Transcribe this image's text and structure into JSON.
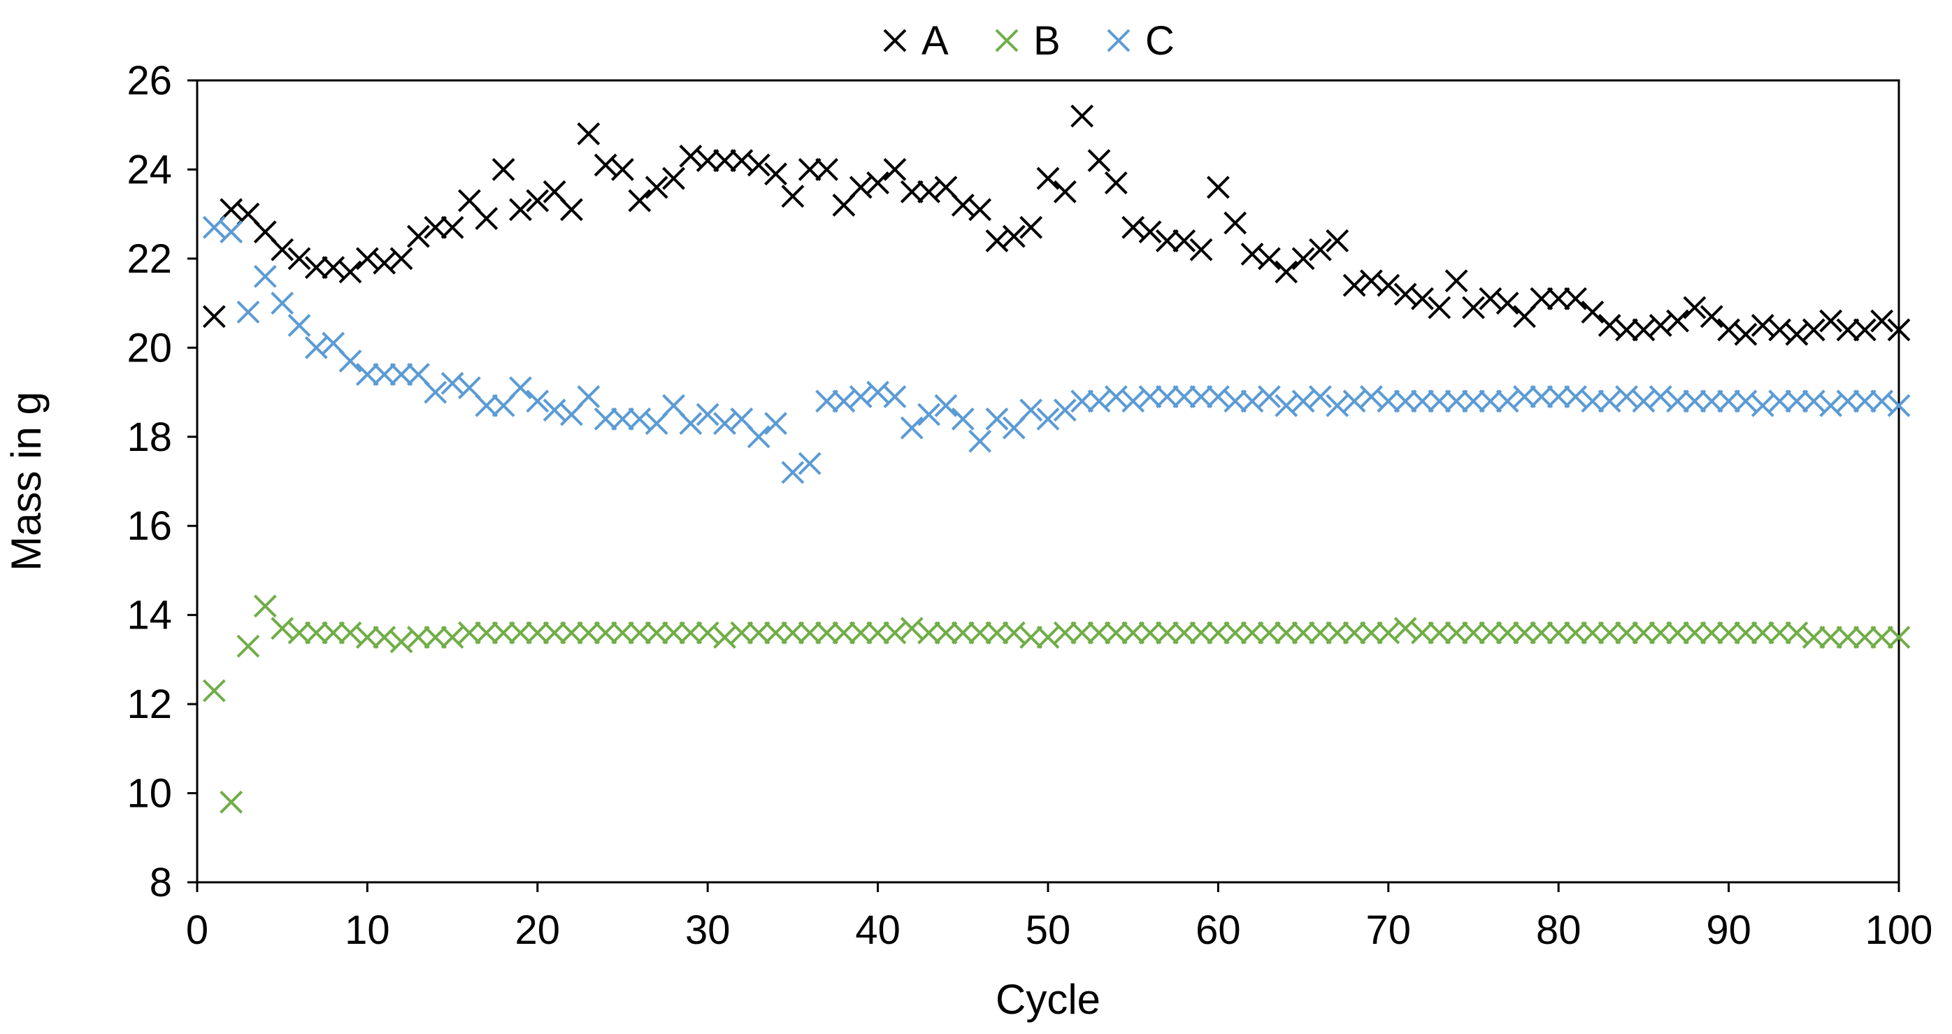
{
  "chart_data": {
    "type": "scatter",
    "title": "",
    "xlabel": "Cycle",
    "ylabel": "Mass in g",
    "xlim": [
      0,
      100
    ],
    "ylim": [
      8,
      26
    ],
    "xticks": [
      "0",
      "10",
      "20",
      "30",
      "40",
      "50",
      "60",
      "70",
      "80",
      "90",
      "100"
    ],
    "yticks": [
      "8",
      "10",
      "12",
      "14",
      "16",
      "18",
      "20",
      "22",
      "24",
      "26"
    ],
    "grid": false,
    "legend_position": "top-center",
    "marker": "x",
    "x": [
      1,
      2,
      3,
      4,
      5,
      6,
      7,
      8,
      9,
      10,
      11,
      12,
      13,
      14,
      15,
      16,
      17,
      18,
      19,
      20,
      21,
      22,
      23,
      24,
      25,
      26,
      27,
      28,
      29,
      30,
      31,
      32,
      33,
      34,
      35,
      36,
      37,
      38,
      39,
      40,
      41,
      42,
      43,
      44,
      45,
      46,
      47,
      48,
      49,
      50,
      51,
      52,
      53,
      54,
      55,
      56,
      57,
      58,
      59,
      60,
      61,
      62,
      63,
      64,
      65,
      66,
      67,
      68,
      69,
      70,
      71,
      72,
      73,
      74,
      75,
      76,
      77,
      78,
      79,
      80,
      81,
      82,
      83,
      84,
      85,
      86,
      87,
      88,
      89,
      90,
      91,
      92,
      93,
      94,
      95,
      96,
      97,
      98,
      99,
      100
    ],
    "series": [
      {
        "name": "A",
        "color": "#000000",
        "values": [
          20.7,
          23.1,
          23.0,
          22.6,
          22.2,
          22.0,
          21.8,
          21.8,
          21.7,
          22.0,
          21.9,
          22.0,
          22.5,
          22.7,
          22.7,
          23.3,
          22.9,
          24.0,
          23.1,
          23.3,
          23.5,
          23.1,
          24.8,
          24.1,
          24.0,
          23.3,
          23.6,
          23.8,
          24.3,
          24.2,
          24.2,
          24.2,
          24.1,
          23.9,
          23.4,
          24.0,
          24.0,
          23.2,
          23.6,
          23.7,
          24.0,
          23.5,
          23.5,
          23.6,
          23.2,
          23.1,
          22.4,
          22.5,
          22.7,
          23.8,
          23.5,
          25.2,
          24.2,
          23.7,
          22.7,
          22.6,
          22.4,
          22.4,
          22.2,
          23.6,
          22.8,
          22.1,
          22.0,
          21.7,
          22.0,
          22.2,
          22.4,
          21.4,
          21.5,
          21.4,
          21.2,
          21.1,
          20.9,
          21.5,
          20.9,
          21.1,
          21.0,
          20.7,
          21.1,
          21.1,
          21.1,
          20.8,
          20.5,
          20.4,
          20.4,
          20.5,
          20.6,
          20.9,
          20.7,
          20.4,
          20.3,
          20.5,
          20.4,
          20.3,
          20.4,
          20.6,
          20.4,
          20.4,
          20.6,
          20.4
        ]
      },
      {
        "name": "B",
        "color": "#70AD47",
        "values": [
          12.3,
          9.8,
          13.3,
          14.2,
          13.7,
          13.6,
          13.6,
          13.6,
          13.6,
          13.5,
          13.5,
          13.4,
          13.5,
          13.5,
          13.5,
          13.6,
          13.6,
          13.6,
          13.6,
          13.6,
          13.6,
          13.6,
          13.6,
          13.6,
          13.6,
          13.6,
          13.6,
          13.6,
          13.6,
          13.6,
          13.5,
          13.6,
          13.6,
          13.6,
          13.6,
          13.6,
          13.6,
          13.6,
          13.6,
          13.6,
          13.6,
          13.7,
          13.6,
          13.6,
          13.6,
          13.6,
          13.6,
          13.6,
          13.5,
          13.5,
          13.6,
          13.6,
          13.6,
          13.6,
          13.6,
          13.6,
          13.6,
          13.6,
          13.6,
          13.6,
          13.6,
          13.6,
          13.6,
          13.6,
          13.6,
          13.6,
          13.6,
          13.6,
          13.6,
          13.6,
          13.7,
          13.6,
          13.6,
          13.6,
          13.6,
          13.6,
          13.6,
          13.6,
          13.6,
          13.6,
          13.6,
          13.6,
          13.6,
          13.6,
          13.6,
          13.6,
          13.6,
          13.6,
          13.6,
          13.6,
          13.6,
          13.6,
          13.6,
          13.6,
          13.5,
          13.5,
          13.5,
          13.5,
          13.5,
          13.5
        ]
      },
      {
        "name": "C",
        "color": "#5B9BD5",
        "values": [
          22.7,
          22.6,
          20.8,
          21.6,
          21.0,
          20.5,
          20.0,
          20.1,
          19.7,
          19.4,
          19.4,
          19.4,
          19.4,
          19.0,
          19.2,
          19.1,
          18.7,
          18.7,
          19.1,
          18.8,
          18.6,
          18.5,
          18.9,
          18.4,
          18.4,
          18.4,
          18.3,
          18.7,
          18.3,
          18.5,
          18.3,
          18.4,
          18.0,
          18.3,
          17.2,
          17.4,
          18.8,
          18.8,
          18.9,
          19.0,
          18.9,
          18.2,
          18.5,
          18.7,
          18.4,
          17.9,
          18.4,
          18.2,
          18.6,
          18.4,
          18.6,
          18.8,
          18.8,
          18.9,
          18.8,
          18.9,
          18.9,
          18.9,
          18.9,
          18.9,
          18.8,
          18.8,
          18.9,
          18.7,
          18.8,
          18.9,
          18.7,
          18.8,
          18.9,
          18.8,
          18.8,
          18.8,
          18.8,
          18.8,
          18.8,
          18.8,
          18.8,
          18.9,
          18.9,
          18.9,
          18.9,
          18.8,
          18.8,
          18.9,
          18.8,
          18.9,
          18.8,
          18.8,
          18.8,
          18.8,
          18.8,
          18.7,
          18.8,
          18.8,
          18.8,
          18.7,
          18.8,
          18.8,
          18.8,
          18.7
        ]
      }
    ]
  }
}
